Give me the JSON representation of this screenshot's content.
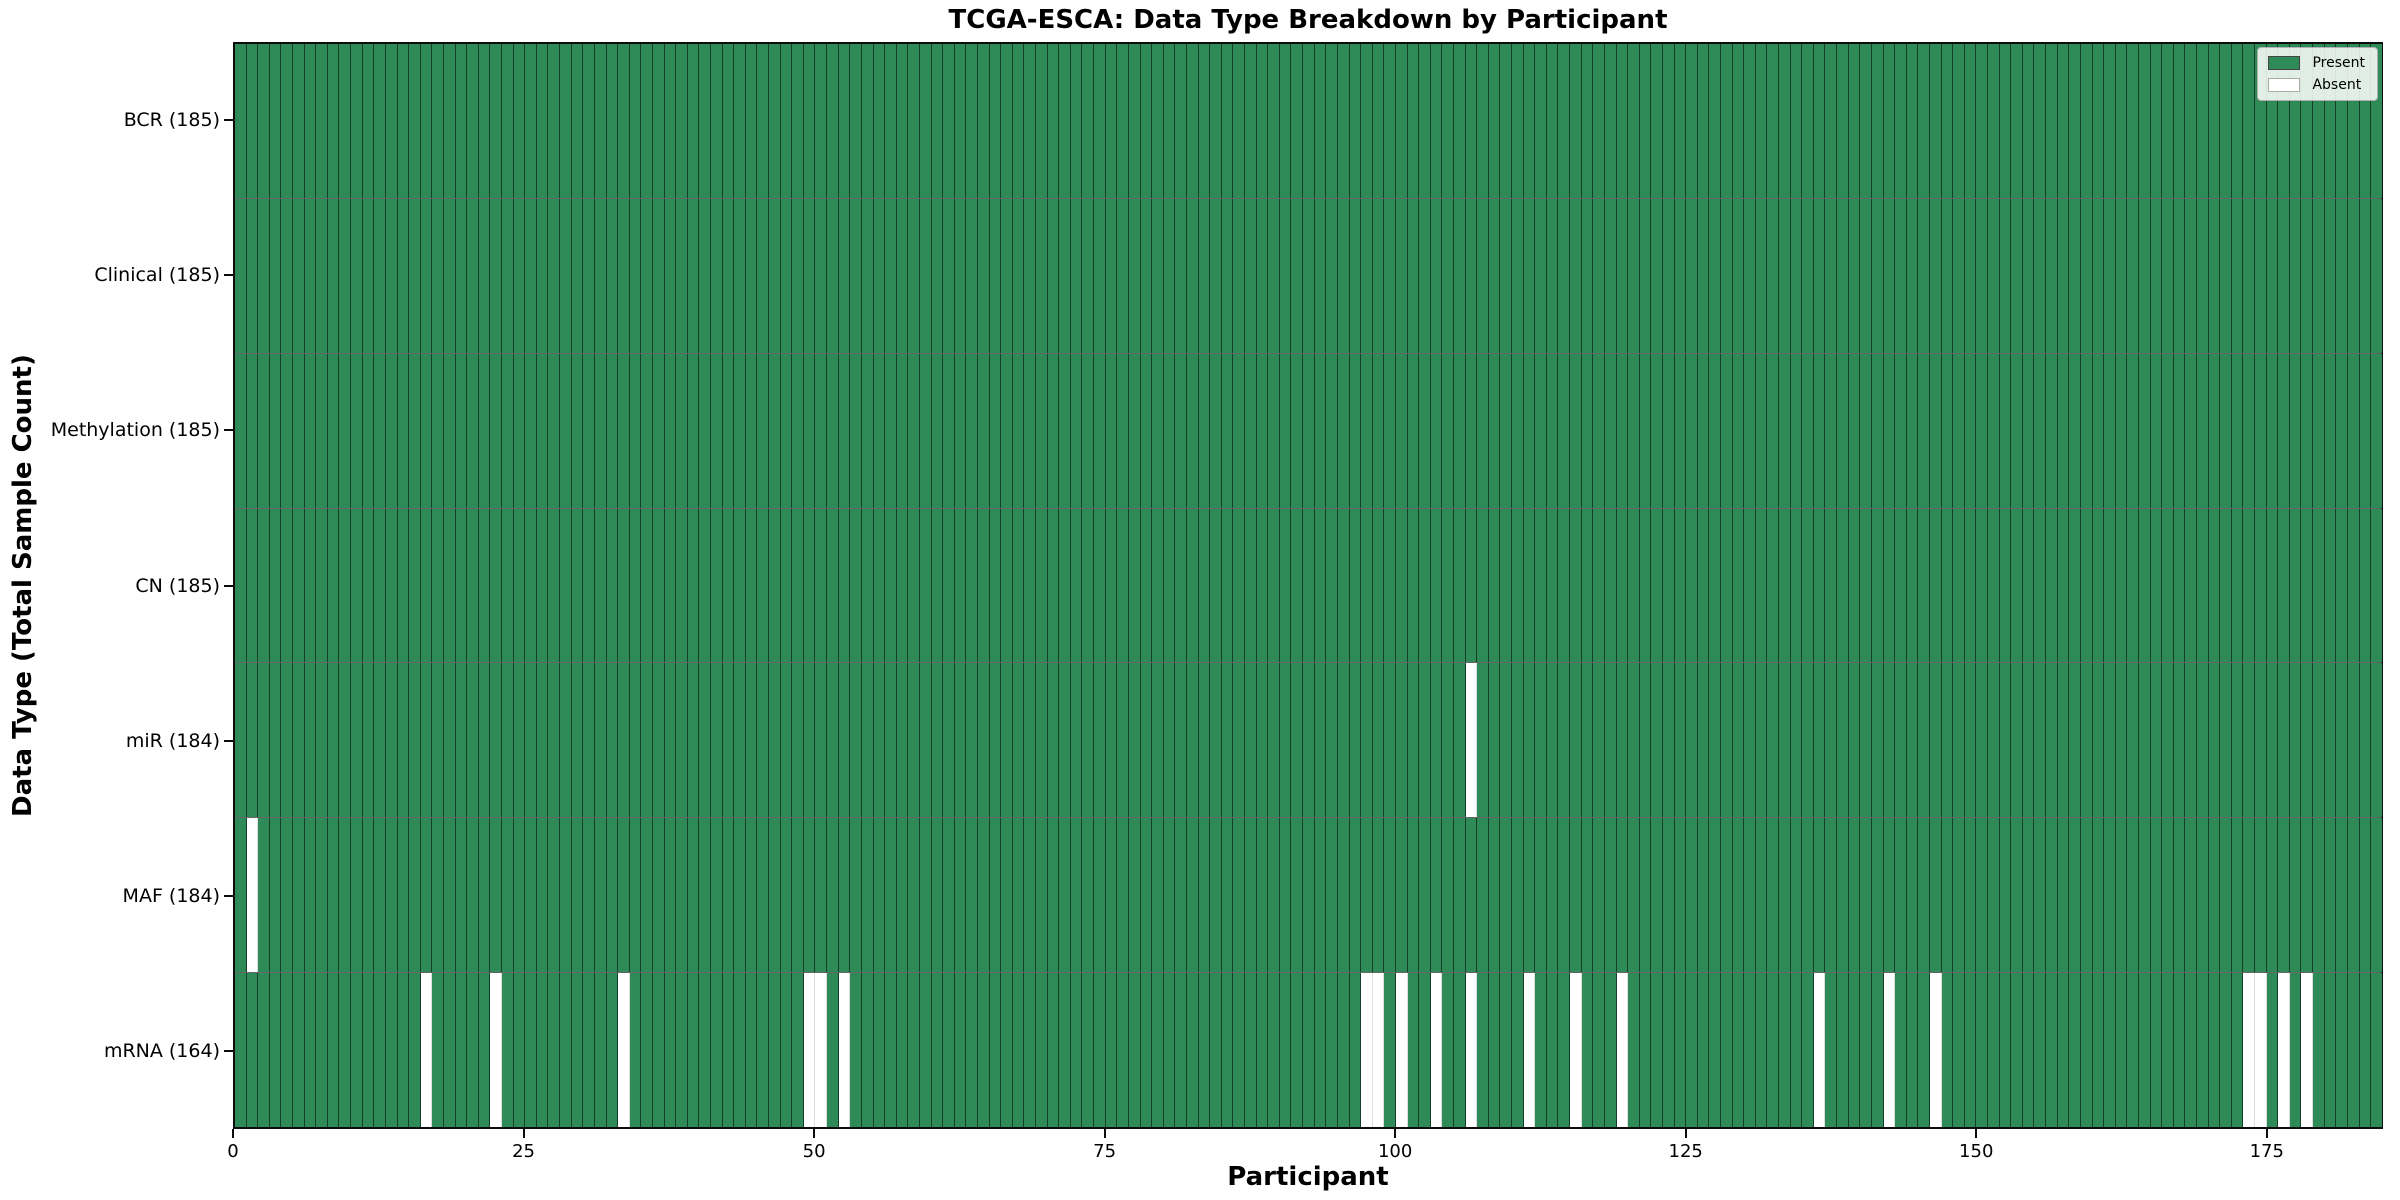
{
  "chart_data": {
    "type": "heatmap",
    "title": "TCGA-ESCA: Data Type Breakdown by Participant",
    "xlabel": "Participant",
    "ylabel": "Data Type (Total Sample Count)",
    "n_participants": 185,
    "x_ticks": [
      0,
      25,
      50,
      75,
      100,
      125,
      150,
      175
    ],
    "x_range": [
      0,
      185
    ],
    "grid": false,
    "legend_position": "upper right",
    "legend": [
      {
        "label": "Present",
        "color": "#2e8b57",
        "edge": "#444444"
      },
      {
        "label": "Absent",
        "color": "#ffffff",
        "edge": "#aaaaaa"
      }
    ],
    "colors": {
      "present": "#2e8b57",
      "absent": "#ffffff",
      "cell_edge": "rgba(0,0,0,0.55)"
    },
    "rows": [
      {
        "label": "BCR (185)",
        "data_type": "BCR",
        "present_count": 185,
        "absent_participants": []
      },
      {
        "label": "Clinical (185)",
        "data_type": "Clinical",
        "present_count": 185,
        "absent_participants": []
      },
      {
        "label": "Methylation (185)",
        "data_type": "Methylation",
        "present_count": 185,
        "absent_participants": []
      },
      {
        "label": "CN (185)",
        "data_type": "CN",
        "present_count": 185,
        "absent_participants": []
      },
      {
        "label": "miR (184)",
        "data_type": "miR",
        "present_count": 184,
        "absent_participants": [
          106
        ]
      },
      {
        "label": "MAF (184)",
        "data_type": "MAF",
        "present_count": 184,
        "absent_participants": [
          1
        ]
      },
      {
        "label": "mRNA (164)",
        "data_type": "mRNA",
        "present_count": 164,
        "absent_participants": [
          16,
          22,
          33,
          49,
          50,
          52,
          97,
          98,
          100,
          103,
          106,
          111,
          115,
          119,
          136,
          142,
          146,
          173,
          174,
          176,
          178
        ]
      }
    ]
  }
}
